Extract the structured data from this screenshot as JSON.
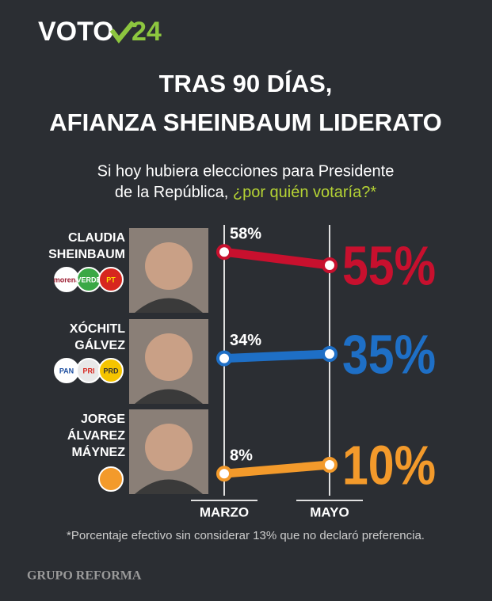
{
  "chart_data": {
    "type": "slope",
    "logo": [
      "VOTO",
      "24"
    ],
    "title": [
      "TRAS 90 DÍAS,",
      "AFIANZA SHEINBAUM LIDERATO"
    ],
    "subtitle": [
      "Si hoy hubiera elecciones para Presidente",
      "de la República,"
    ],
    "subtitle_highlight": "¿por quién votaría?*",
    "categories": [
      "MARZO",
      "MAYO"
    ],
    "series": [
      {
        "name": "CLAUDIA SHEINBAUM",
        "color": "#c8102e",
        "values": [
          58,
          55
        ],
        "value_labels": [
          "58%",
          "55%"
        ],
        "parties": [
          "morena",
          "VERDE",
          "PT"
        ]
      },
      {
        "name": "XÓCHITL GÁLVEZ",
        "color": "#1e6fc6",
        "values": [
          34,
          35
        ],
        "value_labels": [
          "34%",
          "35%"
        ],
        "parties": [
          "PAN",
          "PRI",
          "PRD"
        ]
      },
      {
        "name": "JORGE ÁLVAREZ MÁYNEZ",
        "color": "#f39a2b",
        "values": [
          8,
          10
        ],
        "value_labels": [
          "8%",
          "10%"
        ],
        "parties": []
      }
    ],
    "note": "*Porcentaje efectivo sin considerar 13% que no declaró preferencia.",
    "source": "GRUPO REFORMA"
  }
}
